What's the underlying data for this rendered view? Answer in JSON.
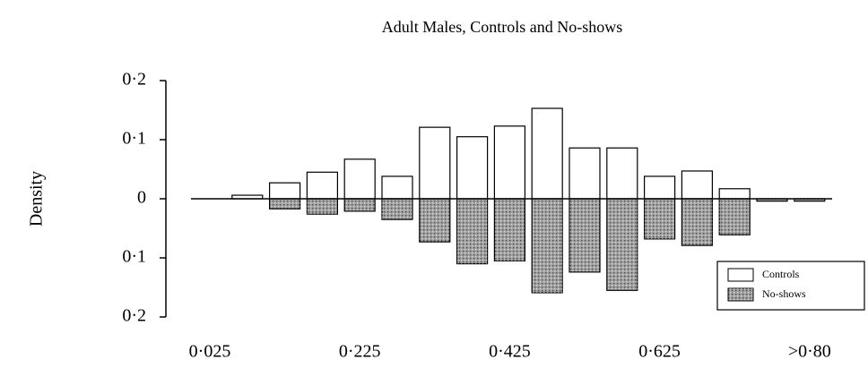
{
  "chart_data": {
    "type": "mirrored_bar",
    "title": "Adult Males, Controls and No-shows",
    "ylabel": "Density",
    "categories": [
      "0·025",
      null,
      null,
      null,
      "0·225",
      null,
      null,
      null,
      "0·425",
      null,
      null,
      null,
      "0·625",
      null,
      null,
      null,
      ">0·80"
    ],
    "series": [
      {
        "name": "Controls",
        "color": "#ffffff",
        "direction": "up",
        "values": [
          0,
          0.006,
          0.027,
          0.045,
          0.067,
          0.038,
          0.121,
          0.105,
          0.123,
          0.153,
          0.086,
          0.086,
          0.038,
          0.047,
          0.017,
          0,
          0
        ]
      },
      {
        "name": "No-shows",
        "color": "#a0a0a0",
        "direction": "down",
        "values": [
          0,
          0,
          -0.017,
          -0.026,
          -0.021,
          -0.035,
          -0.073,
          -0.11,
          -0.105,
          -0.159,
          -0.124,
          -0.155,
          -0.068,
          -0.079,
          -0.061,
          -0.004,
          -0.004
        ]
      }
    ],
    "ylim": [
      -0.2,
      0.2
    ],
    "yticks": [
      {
        "value": 0.2,
        "label": "0·2"
      },
      {
        "value": 0.1,
        "label": "0·1"
      },
      0,
      {
        "value": -0.1,
        "label": "0·1"
      },
      {
        "value": -0.2,
        "label": "0·2"
      }
    ],
    "legend": "lower right"
  }
}
